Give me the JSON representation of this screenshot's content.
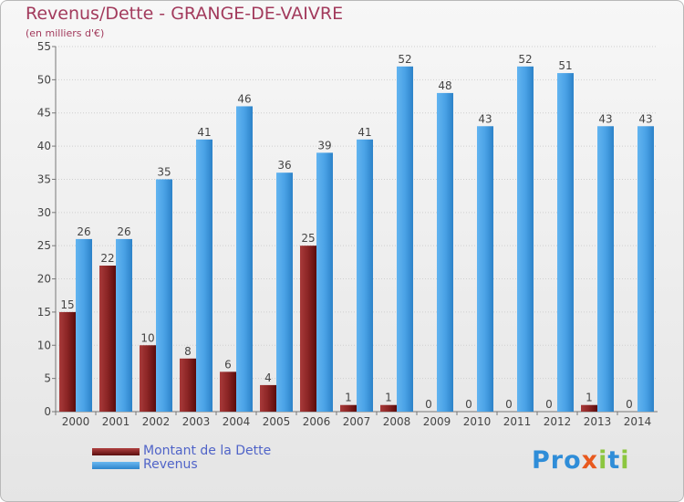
{
  "title": "Revenus/Dette - GRANGE-DE-VAIVRE",
  "subtitle": "(en milliers d'€)",
  "logo": {
    "text": "Proxiti"
  },
  "colors": {
    "title": "#a23a5c",
    "debt": "#7a1e1e",
    "revenue": "#3d9ae0",
    "legend_text": "#5064c8"
  },
  "chart_data": {
    "type": "bar",
    "title": "Revenus/Dette - GRANGE-DE-VAIVRE",
    "subtitle": "(en milliers d'€)",
    "xlabel": "",
    "ylabel": "",
    "ylim": [
      0,
      55
    ],
    "yticks": [
      0,
      5,
      10,
      15,
      20,
      25,
      30,
      35,
      40,
      45,
      50,
      55
    ],
    "grid": true,
    "legend_position": "bottom-left",
    "categories": [
      "2000",
      "2001",
      "2002",
      "2003",
      "2004",
      "2005",
      "2006",
      "2007",
      "2008",
      "2009",
      "2010",
      "2011",
      "2012",
      "2013",
      "2014"
    ],
    "series": [
      {
        "name": "Montant de la Dette",
        "color": "#7a1e1e",
        "values": [
          15,
          22,
          10,
          8,
          6,
          4,
          25,
          1,
          1,
          0,
          0,
          0,
          0,
          1,
          0
        ]
      },
      {
        "name": "Revenus",
        "color": "#3d9ae0",
        "values": [
          26,
          26,
          35,
          41,
          46,
          36,
          39,
          41,
          52,
          48,
          43,
          52,
          51,
          43,
          43
        ]
      }
    ]
  }
}
